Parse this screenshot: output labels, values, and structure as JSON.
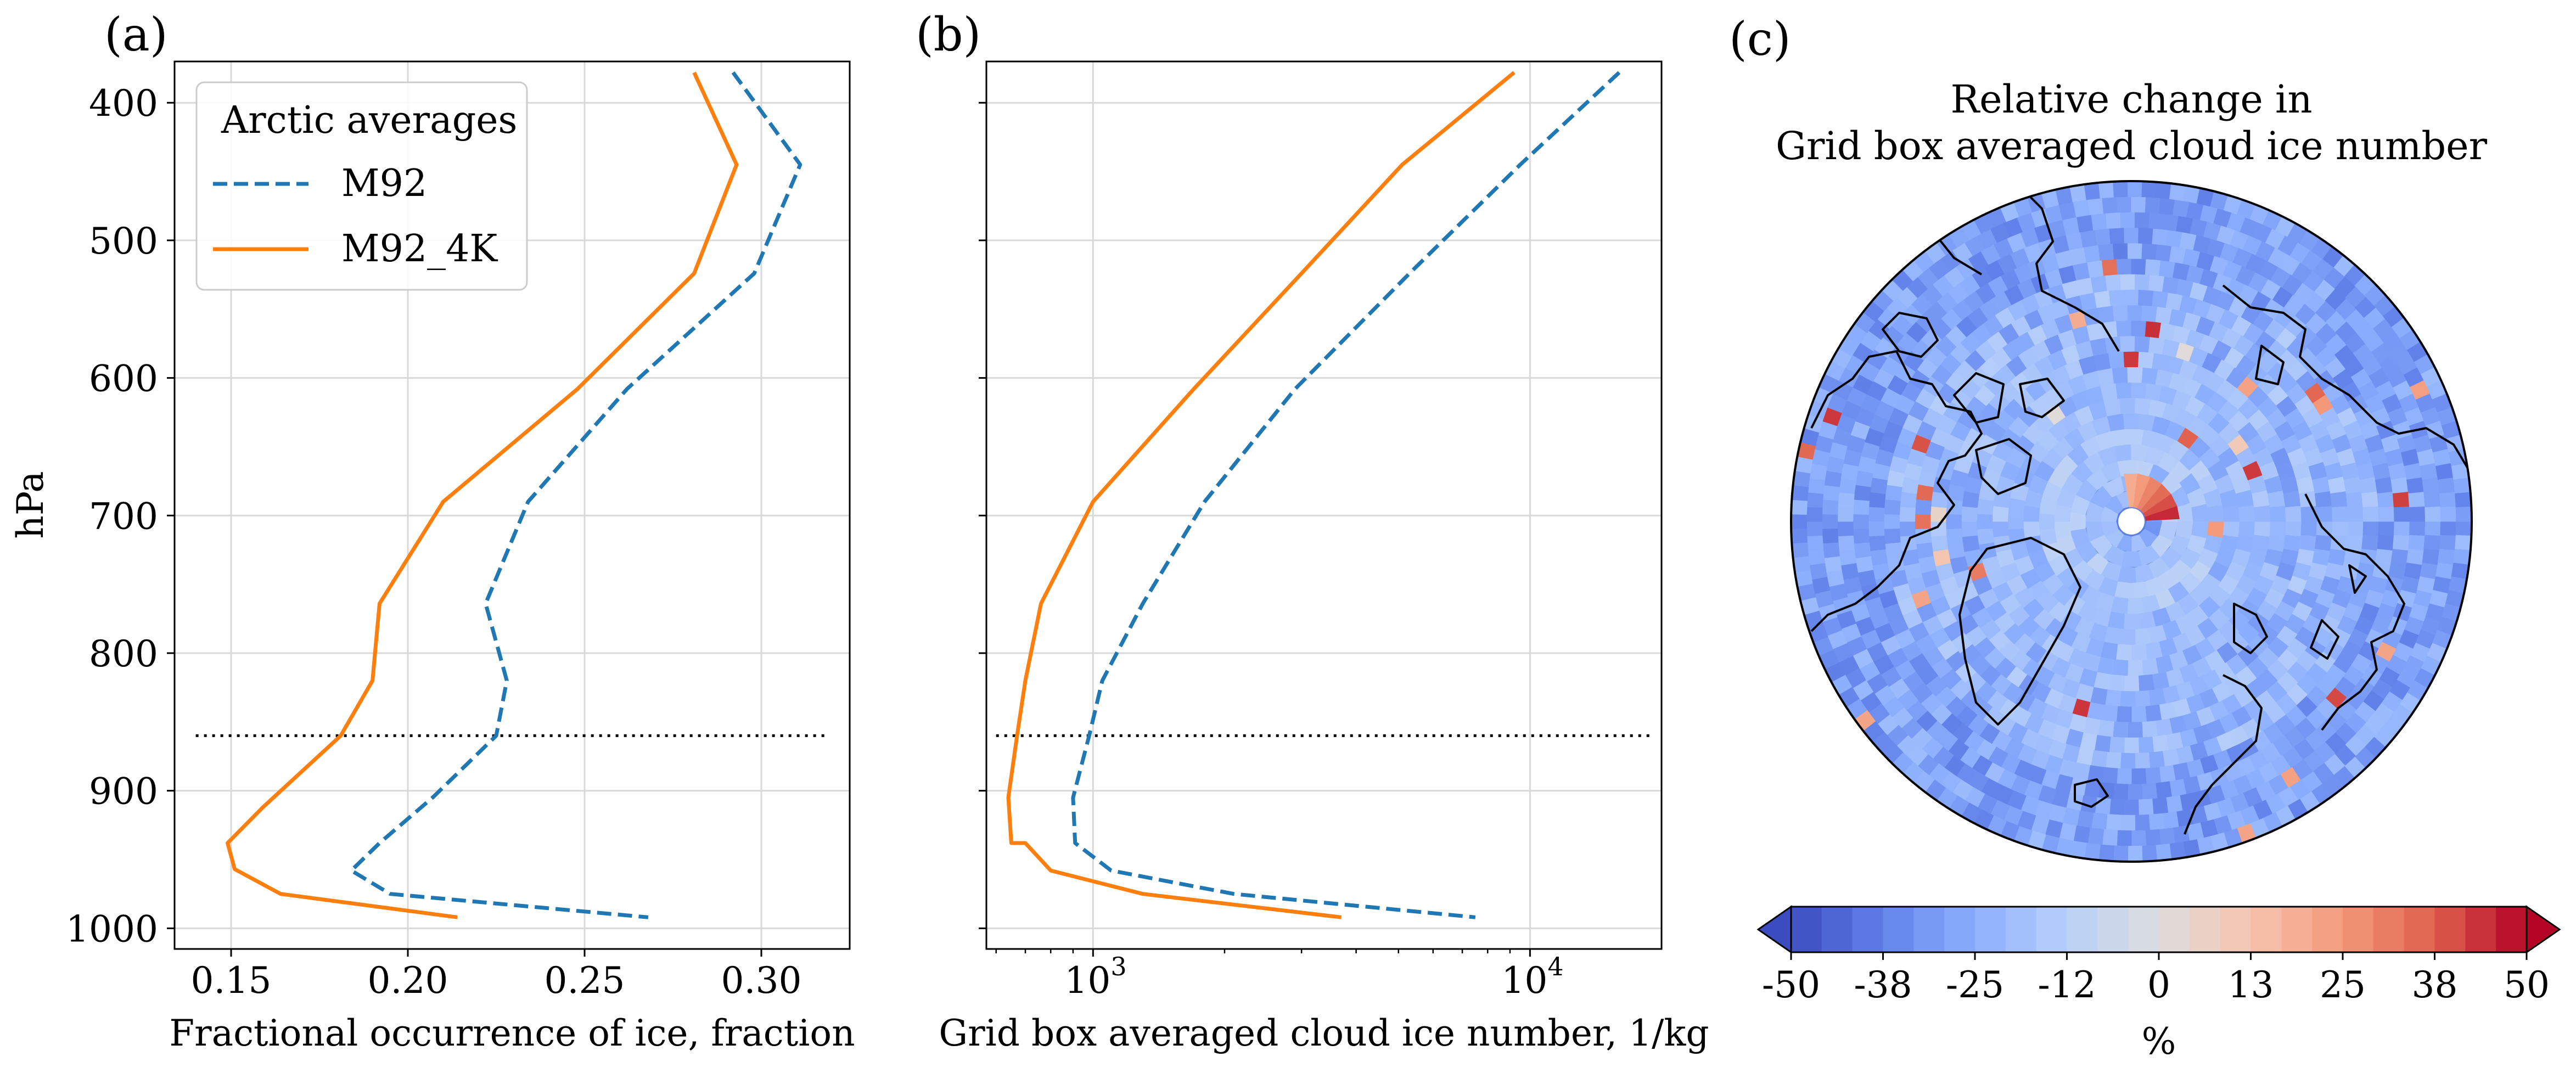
{
  "panels": [
    {
      "letter": "(a)"
    },
    {
      "letter": "(b)"
    },
    {
      "letter": "(c)"
    }
  ],
  "chart_data": [
    {
      "type": "line",
      "panel": "(a)",
      "xlabel": "Fractional occurrence of ice, fraction",
      "ylabel": "hPa",
      "xlim": [
        0.134,
        0.325
      ],
      "ylim": [
        1015,
        370
      ],
      "y_inverted": true,
      "xticks": [
        0.15,
        0.2,
        0.25,
        0.3
      ],
      "xtick_labels": [
        "0.15",
        "0.20",
        "0.25",
        "0.30"
      ],
      "yticks": [
        400,
        500,
        600,
        700,
        800,
        900,
        1000
      ],
      "ytick_labels": [
        "400",
        "500",
        "600",
        "700",
        "800",
        "900",
        "1000"
      ],
      "grid": true,
      "legend": {
        "title": "Arctic averages",
        "position": "top-left"
      },
      "series": [
        {
          "name": "M92",
          "color": "#1f77b4",
          "dash": "dashed",
          "x": [
            0.292,
            0.311,
            0.298,
            0.262,
            0.234,
            0.222,
            0.228,
            0.225,
            0.207,
            0.192,
            0.184,
            0.195,
            0.268
          ],
          "y": [
            378,
            445,
            524,
            608,
            690,
            764,
            820,
            860,
            905,
            938,
            958,
            975,
            992
          ]
        },
        {
          "name": "M92_4K",
          "color": "#ff7f0e",
          "dash": "solid",
          "x": [
            0.281,
            0.293,
            0.281,
            0.248,
            0.21,
            0.192,
            0.19,
            0.181,
            0.159,
            0.149,
            0.151,
            0.164,
            0.214
          ],
          "y": [
            378,
            445,
            524,
            608,
            690,
            764,
            820,
            860,
            912,
            938,
            957,
            975,
            992
          ]
        }
      ],
      "annotations": [
        {
          "type": "hline",
          "y": 860,
          "style": "dotted",
          "color": "#000000"
        }
      ]
    },
    {
      "type": "line",
      "panel": "(b)",
      "xlabel": "Grid box averaged cloud ice number, 1/kg",
      "xscale": "log",
      "xlim": [
        570,
        20000
      ],
      "ylim": [
        1015,
        370
      ],
      "y_inverted": true,
      "xticks": [
        1000,
        10000
      ],
      "xtick_labels": [
        "10",
        "10"
      ],
      "xtick_exponents": [
        "3",
        "4"
      ],
      "yticks": [
        400,
        500,
        600,
        700,
        800,
        900,
        1000
      ],
      "grid": true,
      "series": [
        {
          "name": "M92",
          "color": "#1f77b4",
          "dash": "dashed",
          "x": [
            16000,
            9500,
            5300,
            2900,
            1800,
            1300,
            1050,
            980,
            900,
            910,
            1100,
            2100,
            7500
          ],
          "y": [
            378,
            445,
            524,
            608,
            690,
            764,
            820,
            860,
            905,
            938,
            958,
            975,
            992
          ]
        },
        {
          "name": "M92_4K",
          "color": "#ff7f0e",
          "dash": "solid",
          "x": [
            9200,
            5100,
            3000,
            1700,
            1000,
            760,
            700,
            670,
            640,
            650,
            700,
            800,
            1300,
            3700
          ],
          "y": [
            378,
            445,
            524,
            608,
            690,
            764,
            820,
            860,
            905,
            938,
            938,
            958,
            975,
            992
          ]
        }
      ],
      "annotations": [
        {
          "type": "hline",
          "y": 860,
          "style": "dotted",
          "color": "#000000"
        }
      ]
    },
    {
      "type": "heatmap",
      "panel": "(c)",
      "projection": "north-polar-stereographic",
      "title_line1": "Relative change in",
      "title_line2": "Grid box averaged cloud ice number",
      "colorbar": {
        "label": "%",
        "min": -50,
        "max": 50,
        "ticks": [
          "-50",
          "-38",
          "-25",
          "-12",
          "0",
          "13",
          "25",
          "38",
          "50"
        ],
        "extend": "both",
        "colormap": "coolwarm",
        "bins": 24
      }
    }
  ]
}
